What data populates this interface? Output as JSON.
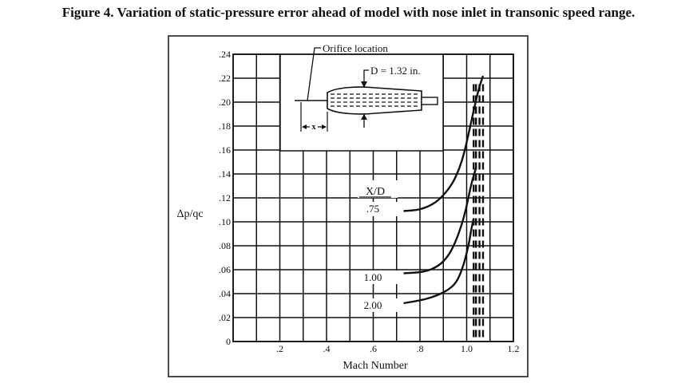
{
  "figure_title": "Figure 4. Variation of static-pressure error ahead of model with nose inlet in transonic speed range.",
  "diagram": {
    "orifice_label": "Orifice location",
    "diameter_label": "D = 1.32 in.",
    "x_label": "x"
  },
  "chart_data": {
    "type": "line",
    "title": "",
    "xlabel": "Mach Number",
    "ylabel": "Δp/qc",
    "xlim": [
      0,
      1.2
    ],
    "ylim": [
      0,
      0.24
    ],
    "x_ticks": [
      {
        "v": 0.2,
        "label": ".2"
      },
      {
        "v": 0.4,
        "label": ".4"
      },
      {
        "v": 0.6,
        "label": ".6"
      },
      {
        "v": 0.8,
        "label": ".8"
      },
      {
        "v": 1.0,
        "label": "1.0"
      },
      {
        "v": 1.2,
        "label": "1.2"
      }
    ],
    "y_ticks": [
      {
        "v": 0,
        "label": "0"
      },
      {
        "v": 0.02,
        "label": ".02"
      },
      {
        "v": 0.04,
        "label": ".04"
      },
      {
        "v": 0.06,
        "label": ".06"
      },
      {
        "v": 0.08,
        "label": ".08"
      },
      {
        "v": 0.1,
        "label": ".10"
      },
      {
        "v": 0.12,
        "label": ".12"
      },
      {
        "v": 0.14,
        "label": ".14"
      },
      {
        "v": 0.16,
        "label": ".16"
      },
      {
        "v": 0.18,
        "label": ".18"
      },
      {
        "v": 0.2,
        "label": ".20"
      },
      {
        "v": 0.22,
        "label": ".22"
      },
      {
        "v": 0.24,
        "label": ".24"
      }
    ],
    "grid": true,
    "legend_title": "X/D",
    "series": [
      {
        "name": ".75",
        "x": [
          0.73,
          0.8,
          0.86,
          0.9,
          0.94,
          0.97,
          0.99,
          1.01,
          1.03,
          1.05,
          1.07
        ],
        "y": [
          0.109,
          0.11,
          0.115,
          0.122,
          0.132,
          0.145,
          0.158,
          0.175,
          0.193,
          0.21,
          0.222
        ]
      },
      {
        "name": "1.00",
        "x": [
          0.73,
          0.82,
          0.88,
          0.92,
          0.95,
          0.98,
          1.0,
          1.02,
          1.04
        ],
        "y": [
          0.057,
          0.058,
          0.063,
          0.071,
          0.082,
          0.098,
          0.113,
          0.132,
          0.145
        ]
      },
      {
        "name": "2.00",
        "x": [
          0.73,
          0.82,
          0.88,
          0.92,
          0.95,
          0.97,
          0.99,
          1.01,
          1.02,
          1.03
        ],
        "y": [
          0.032,
          0.035,
          0.039,
          0.043,
          0.048,
          0.055,
          0.066,
          0.082,
          0.094,
          0.103
        ]
      }
    ],
    "dashed_lines_x": [
      1.03,
      1.04,
      1.055,
      1.07
    ]
  }
}
